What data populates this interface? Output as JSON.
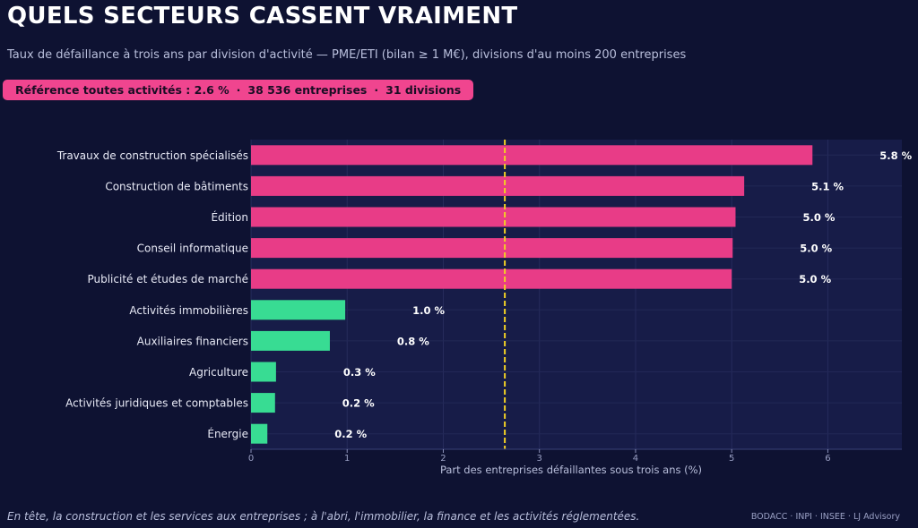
{
  "title": "QUELS SECTEURS CASSENT VRAIMENT",
  "subtitle": "Taux de défaillance à trois ans par division d'activité — PME/ETI (bilan ≥ 1 M€), divisions d'au moins 200 entreprises",
  "badge": {
    "reference": "Référence toutes activités : 2.6 %",
    "companies": "38 536 entreprises",
    "divisions": "31 divisions",
    "separator": "·"
  },
  "caption": "En tête, la construction et les services aux entreprises ; à l'abri, l'immobilier, la finance et les activités réglementées.",
  "source": "BODACC · INPI · INSEE · LJ Advisory",
  "colors": {
    "background": "#0e1232",
    "plot_background": "#171c48",
    "high": "#e83c87",
    "low": "#38dc93",
    "reference_line": "#f2d024"
  },
  "chart_data": {
    "type": "bar",
    "orientation": "horizontal",
    "categories": [
      "Travaux de construction spécialisés",
      "Construction de bâtiments",
      "Édition",
      "Conseil informatique",
      "Publicité et études de marché",
      "Activités immobilières",
      "Auxiliaires financiers",
      "Agriculture",
      "Activités juridiques et comptables",
      "Énergie"
    ],
    "values": [
      5.84,
      5.13,
      5.04,
      5.01,
      5.0,
      0.98,
      0.82,
      0.26,
      0.25,
      0.17
    ],
    "value_labels": [
      "5.8 %",
      "5.1 %",
      "5.0 %",
      "5.0 %",
      "5.0 %",
      "1.0 %",
      "0.8 %",
      "0.3 %",
      "0.2 %",
      "0.2 %"
    ],
    "groups": [
      "high",
      "high",
      "high",
      "high",
      "high",
      "low",
      "low",
      "low",
      "low",
      "low"
    ],
    "reference_value": 2.64,
    "xlabel": "Part des entreprises défaillantes sous trois ans (%)",
    "xlim": [
      0,
      6.77
    ],
    "xticks": [
      0,
      1,
      2,
      3,
      4,
      5,
      6
    ],
    "grid": true
  }
}
